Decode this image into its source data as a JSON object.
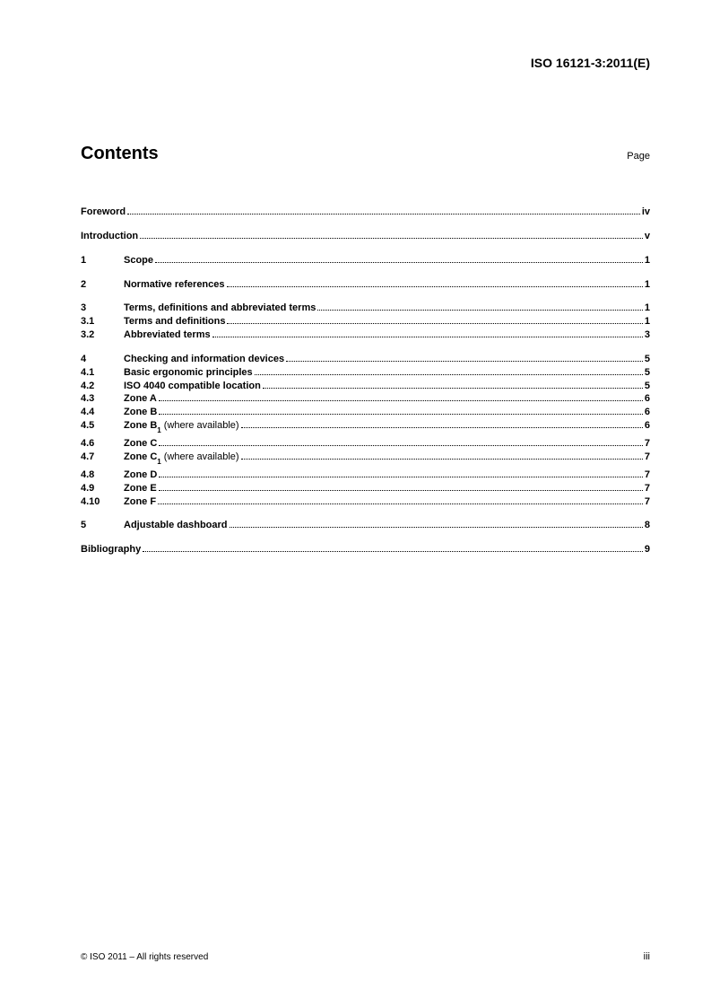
{
  "document_id": "ISO 16121-3:2011(E)",
  "title": "Contents",
  "page_label": "Page",
  "toc": [
    {
      "group": [
        {
          "num": "",
          "label": "Foreword",
          "suffix": "",
          "page": "iv"
        }
      ]
    },
    {
      "group": [
        {
          "num": "",
          "label": "Introduction",
          "suffix": "",
          "page": "v"
        }
      ]
    },
    {
      "group": [
        {
          "num": "1",
          "label": "Scope",
          "suffix": "",
          "page": "1"
        }
      ]
    },
    {
      "group": [
        {
          "num": "2",
          "label": "Normative references",
          "suffix": "",
          "page": "1"
        }
      ]
    },
    {
      "group": [
        {
          "num": "3",
          "label": "Terms, definitions and abbreviated terms",
          "suffix": "",
          "page": "1"
        },
        {
          "num": "3.1",
          "label": "Terms and definitions",
          "suffix": "",
          "page": "1"
        },
        {
          "num": "3.2",
          "label": "Abbreviated terms",
          "suffix": "",
          "page": "3"
        }
      ]
    },
    {
      "group": [
        {
          "num": "4",
          "label": "Checking and information devices",
          "suffix": "",
          "page": "5"
        },
        {
          "num": "4.1",
          "label": "Basic ergonomic principles",
          "suffix": "",
          "page": "5"
        },
        {
          "num": "4.2",
          "label": "ISO 4040 compatible location",
          "suffix": "",
          "page": "5"
        },
        {
          "num": "4.3",
          "label": "Zone A",
          "suffix": "",
          "page": "6"
        },
        {
          "num": "4.4",
          "label": "Zone B",
          "suffix": "",
          "page": "6"
        },
        {
          "num": "4.5",
          "label": "Zone B",
          "sub": "1",
          "suffix": " (where available)",
          "page": "6",
          "gap_after": true
        },
        {
          "num": "4.6",
          "label": "Zone C",
          "suffix": "",
          "page": "7"
        },
        {
          "num": "4.7",
          "label": "Zone C",
          "sub": "1",
          "suffix": " (where available)",
          "page": "7",
          "gap_after": true
        },
        {
          "num": "4.8",
          "label": "Zone D",
          "suffix": "",
          "page": "7"
        },
        {
          "num": "4.9",
          "label": "Zone E",
          "suffix": "",
          "page": "7"
        },
        {
          "num": "4.10",
          "label": "Zone F",
          "suffix": "",
          "page": "7"
        }
      ]
    },
    {
      "group": [
        {
          "num": "5",
          "label": "Adjustable dashboard",
          "suffix": "",
          "page": "8"
        }
      ]
    },
    {
      "group": [
        {
          "num": "",
          "label": "Bibliography",
          "suffix": "",
          "page": "9"
        }
      ]
    }
  ],
  "footer": {
    "copyright": "© ISO 2011 – All rights reserved",
    "page_number": "iii"
  }
}
